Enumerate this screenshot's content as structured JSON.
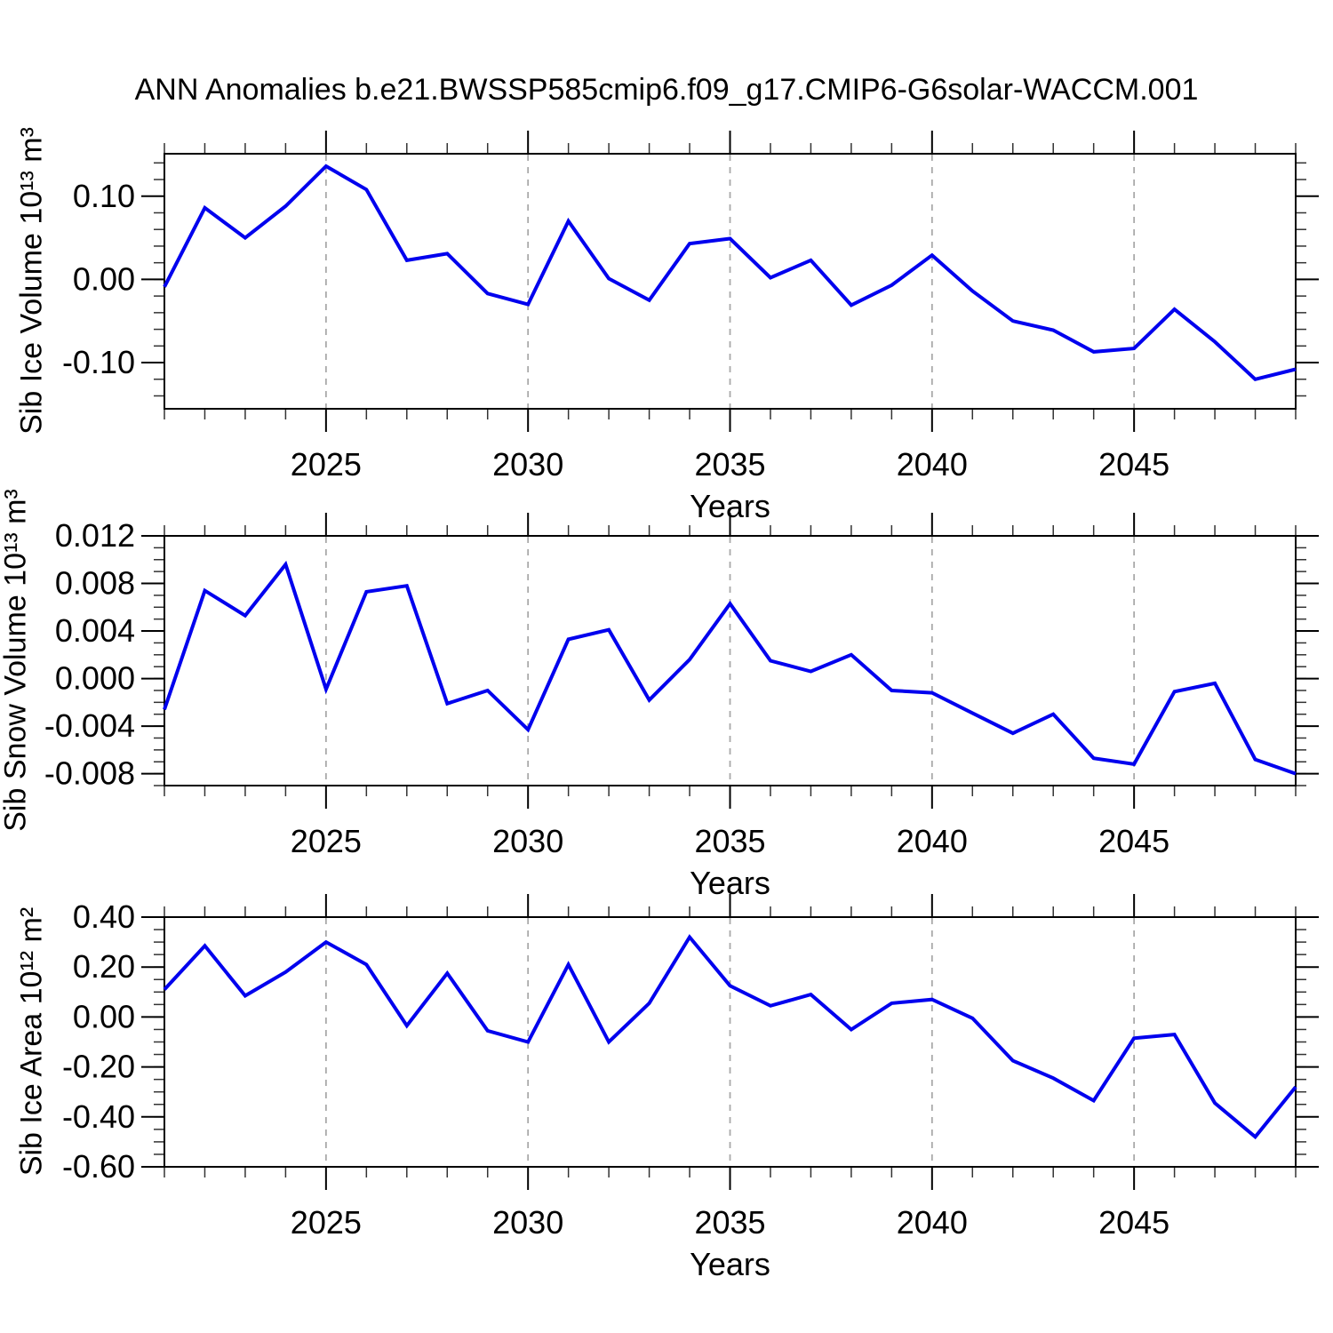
{
  "chart_data": {
    "type": "line",
    "title": "ANN Anomalies b.e21.BWSSP585cmip6.f09_g17.CMIP6-G6solar-WACCM.001",
    "xlabel": "Years",
    "x": [
      2021,
      2022,
      2023,
      2024,
      2025,
      2026,
      2027,
      2028,
      2029,
      2030,
      2031,
      2032,
      2033,
      2034,
      2035,
      2036,
      2037,
      2038,
      2039,
      2040,
      2041,
      2042,
      2043,
      2044,
      2045,
      2046,
      2047,
      2048,
      2049
    ],
    "xlim": [
      2021,
      2049
    ],
    "xticks_major": [
      2025,
      2030,
      2035,
      2040,
      2045
    ],
    "xtick_labels": [
      "2025",
      "2030",
      "2035",
      "2040",
      "2045"
    ],
    "xminor_step": 1,
    "grid": "vertical dashed lines at major x ticks",
    "legend": "none",
    "line_color": "#0000ee",
    "grid_color": "#a9a9a9",
    "panels": [
      {
        "name": "sib-ice-volume",
        "ylabel": "Sib Ice Volume 10¹³ m³",
        "ylim": [
          -0.1555,
          0.151
        ],
        "yticks": [
          0.1,
          0.0,
          -0.1
        ],
        "ytick_labels": [
          "0.10",
          "0.00",
          "-0.10"
        ],
        "yminor_step": 0.02,
        "values": [
          -0.009,
          0.086,
          0.05,
          0.088,
          0.136,
          0.108,
          0.023,
          0.031,
          -0.017,
          -0.03,
          0.07,
          0.001,
          -0.025,
          0.043,
          0.049,
          0.002,
          0.023,
          -0.031,
          -0.007,
          0.029,
          -0.014,
          -0.05,
          -0.061,
          -0.087,
          -0.083,
          -0.036,
          -0.075,
          -0.12,
          -0.108
        ]
      },
      {
        "name": "sib-snow-volume",
        "ylabel": "Sib Snow Volume 10¹³ m³",
        "ylim": [
          -0.009,
          0.012
        ],
        "yticks": [
          0.012,
          0.008,
          0.004,
          0.0,
          -0.004,
          -0.008
        ],
        "ytick_labels": [
          "0.012",
          "0.008",
          "0.004",
          "0.000",
          "-0.004",
          "-0.008"
        ],
        "yminor_step": 0.001,
        "values": [
          -0.0026,
          0.0074,
          0.0053,
          0.0096,
          -0.0009,
          0.0073,
          0.0078,
          -0.0021,
          -0.001,
          -0.0043,
          0.0033,
          0.0041,
          -0.0018,
          0.0016,
          0.0063,
          0.0015,
          0.0006,
          0.002,
          -0.001,
          -0.0012,
          -0.0029,
          -0.0046,
          -0.003,
          -0.0067,
          -0.0072,
          -0.0011,
          -0.0004,
          -0.0068,
          -0.008
        ]
      },
      {
        "name": "sib-ice-area",
        "ylabel": "Sib Ice Area 10¹² m²",
        "ylim": [
          -0.6,
          0.4
        ],
        "yticks": [
          0.4,
          0.2,
          0.0,
          -0.2,
          -0.4,
          -0.6
        ],
        "ytick_labels": [
          "0.40",
          "0.20",
          "0.00",
          "-0.20",
          "-0.40",
          "-0.60"
        ],
        "yminor_step": 0.05,
        "values": [
          0.11,
          0.285,
          0.085,
          0.18,
          0.3,
          0.21,
          -0.035,
          0.175,
          -0.055,
          -0.1,
          0.21,
          -0.1,
          0.055,
          0.32,
          0.125,
          0.045,
          0.09,
          -0.05,
          0.055,
          0.07,
          -0.005,
          -0.175,
          -0.245,
          -0.335,
          -0.085,
          -0.07,
          -0.345,
          -0.48,
          -0.28
        ]
      }
    ]
  }
}
